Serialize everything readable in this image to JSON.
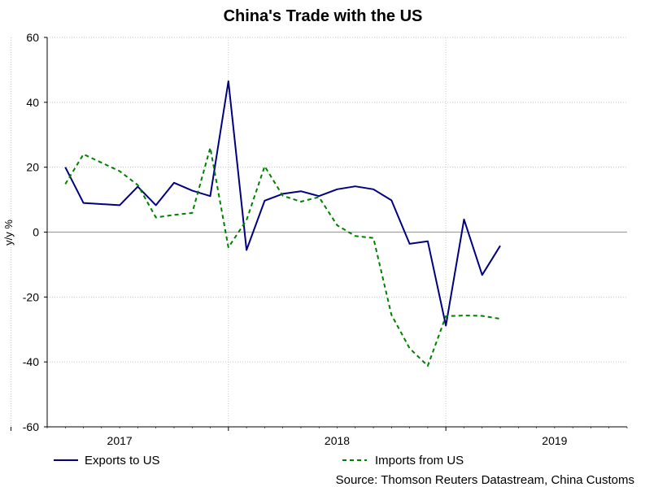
{
  "chart_data": {
    "type": "line",
    "title": "China's Trade with the US",
    "ylabel": "y/y %",
    "xlabel": "",
    "ylim": [
      -60,
      60
    ],
    "yticks": [
      -60,
      -40,
      -20,
      0,
      20,
      40,
      60
    ],
    "xlim": [
      "2016-09",
      "2019-05"
    ],
    "x_year_labels": [
      "2017",
      "2018",
      "2019"
    ],
    "grid": true,
    "legend_position": "bottom",
    "source": "Source: Thomson Reuters Datastream, China Customs",
    "months": [
      "2016-10",
      "2016-11",
      "2016-12",
      "2017-01",
      "2017-02",
      "2017-03",
      "2017-04",
      "2017-05",
      "2017-06",
      "2017-07",
      "2017-08",
      "2017-09",
      "2017-10",
      "2017-11",
      "2017-12",
      "2018-01",
      "2018-02",
      "2018-03",
      "2018-04",
      "2018-05",
      "2018-06",
      "2018-07",
      "2018-08",
      "2018-09",
      "2018-10",
      "2018-11",
      "2018-12",
      "2019-01",
      "2019-02",
      "2019-03"
    ],
    "series": [
      {
        "name": "Exports to US",
        "color": "#000080",
        "style": "solid",
        "values": [
          20,
          9,
          8.3,
          14,
          8.3,
          15.2,
          12.8,
          11.1,
          46.5,
          -5.5,
          9.7,
          11.8,
          12.6,
          11.1,
          13.2,
          14.1,
          13.2,
          9.8,
          -3.6,
          -2.8,
          -28.8,
          3.9,
          -13.2,
          -4.2
        ]
      },
      {
        "name": "Imports from US",
        "color": "#008000",
        "style": "dashed",
        "values": [
          14.8,
          24,
          18.8,
          14.5,
          4.5,
          5.3,
          5.9,
          26,
          -4.7,
          3.7,
          20.3,
          11.2,
          9.4,
          10.8,
          2.1,
          -1.2,
          -1.8,
          -25.5,
          -35.8,
          -41.2,
          -25.9,
          -25.7,
          -25.8,
          -26.7
        ]
      }
    ],
    "x_positions": [
      "2016-10",
      "2016-11",
      "2017-01",
      "2017-02",
      "2017-03",
      "2017-04",
      "2017-05",
      "2017-06",
      "2017-07",
      "2017-08",
      "2017-09",
      "2017-10",
      "2017-11",
      "2017-12",
      "2018-01",
      "2018-02",
      "2018-03",
      "2018-04",
      "2018-05",
      "2018-06",
      "2018-07",
      "2018-08",
      "2018-09",
      "2018-10"
    ]
  }
}
